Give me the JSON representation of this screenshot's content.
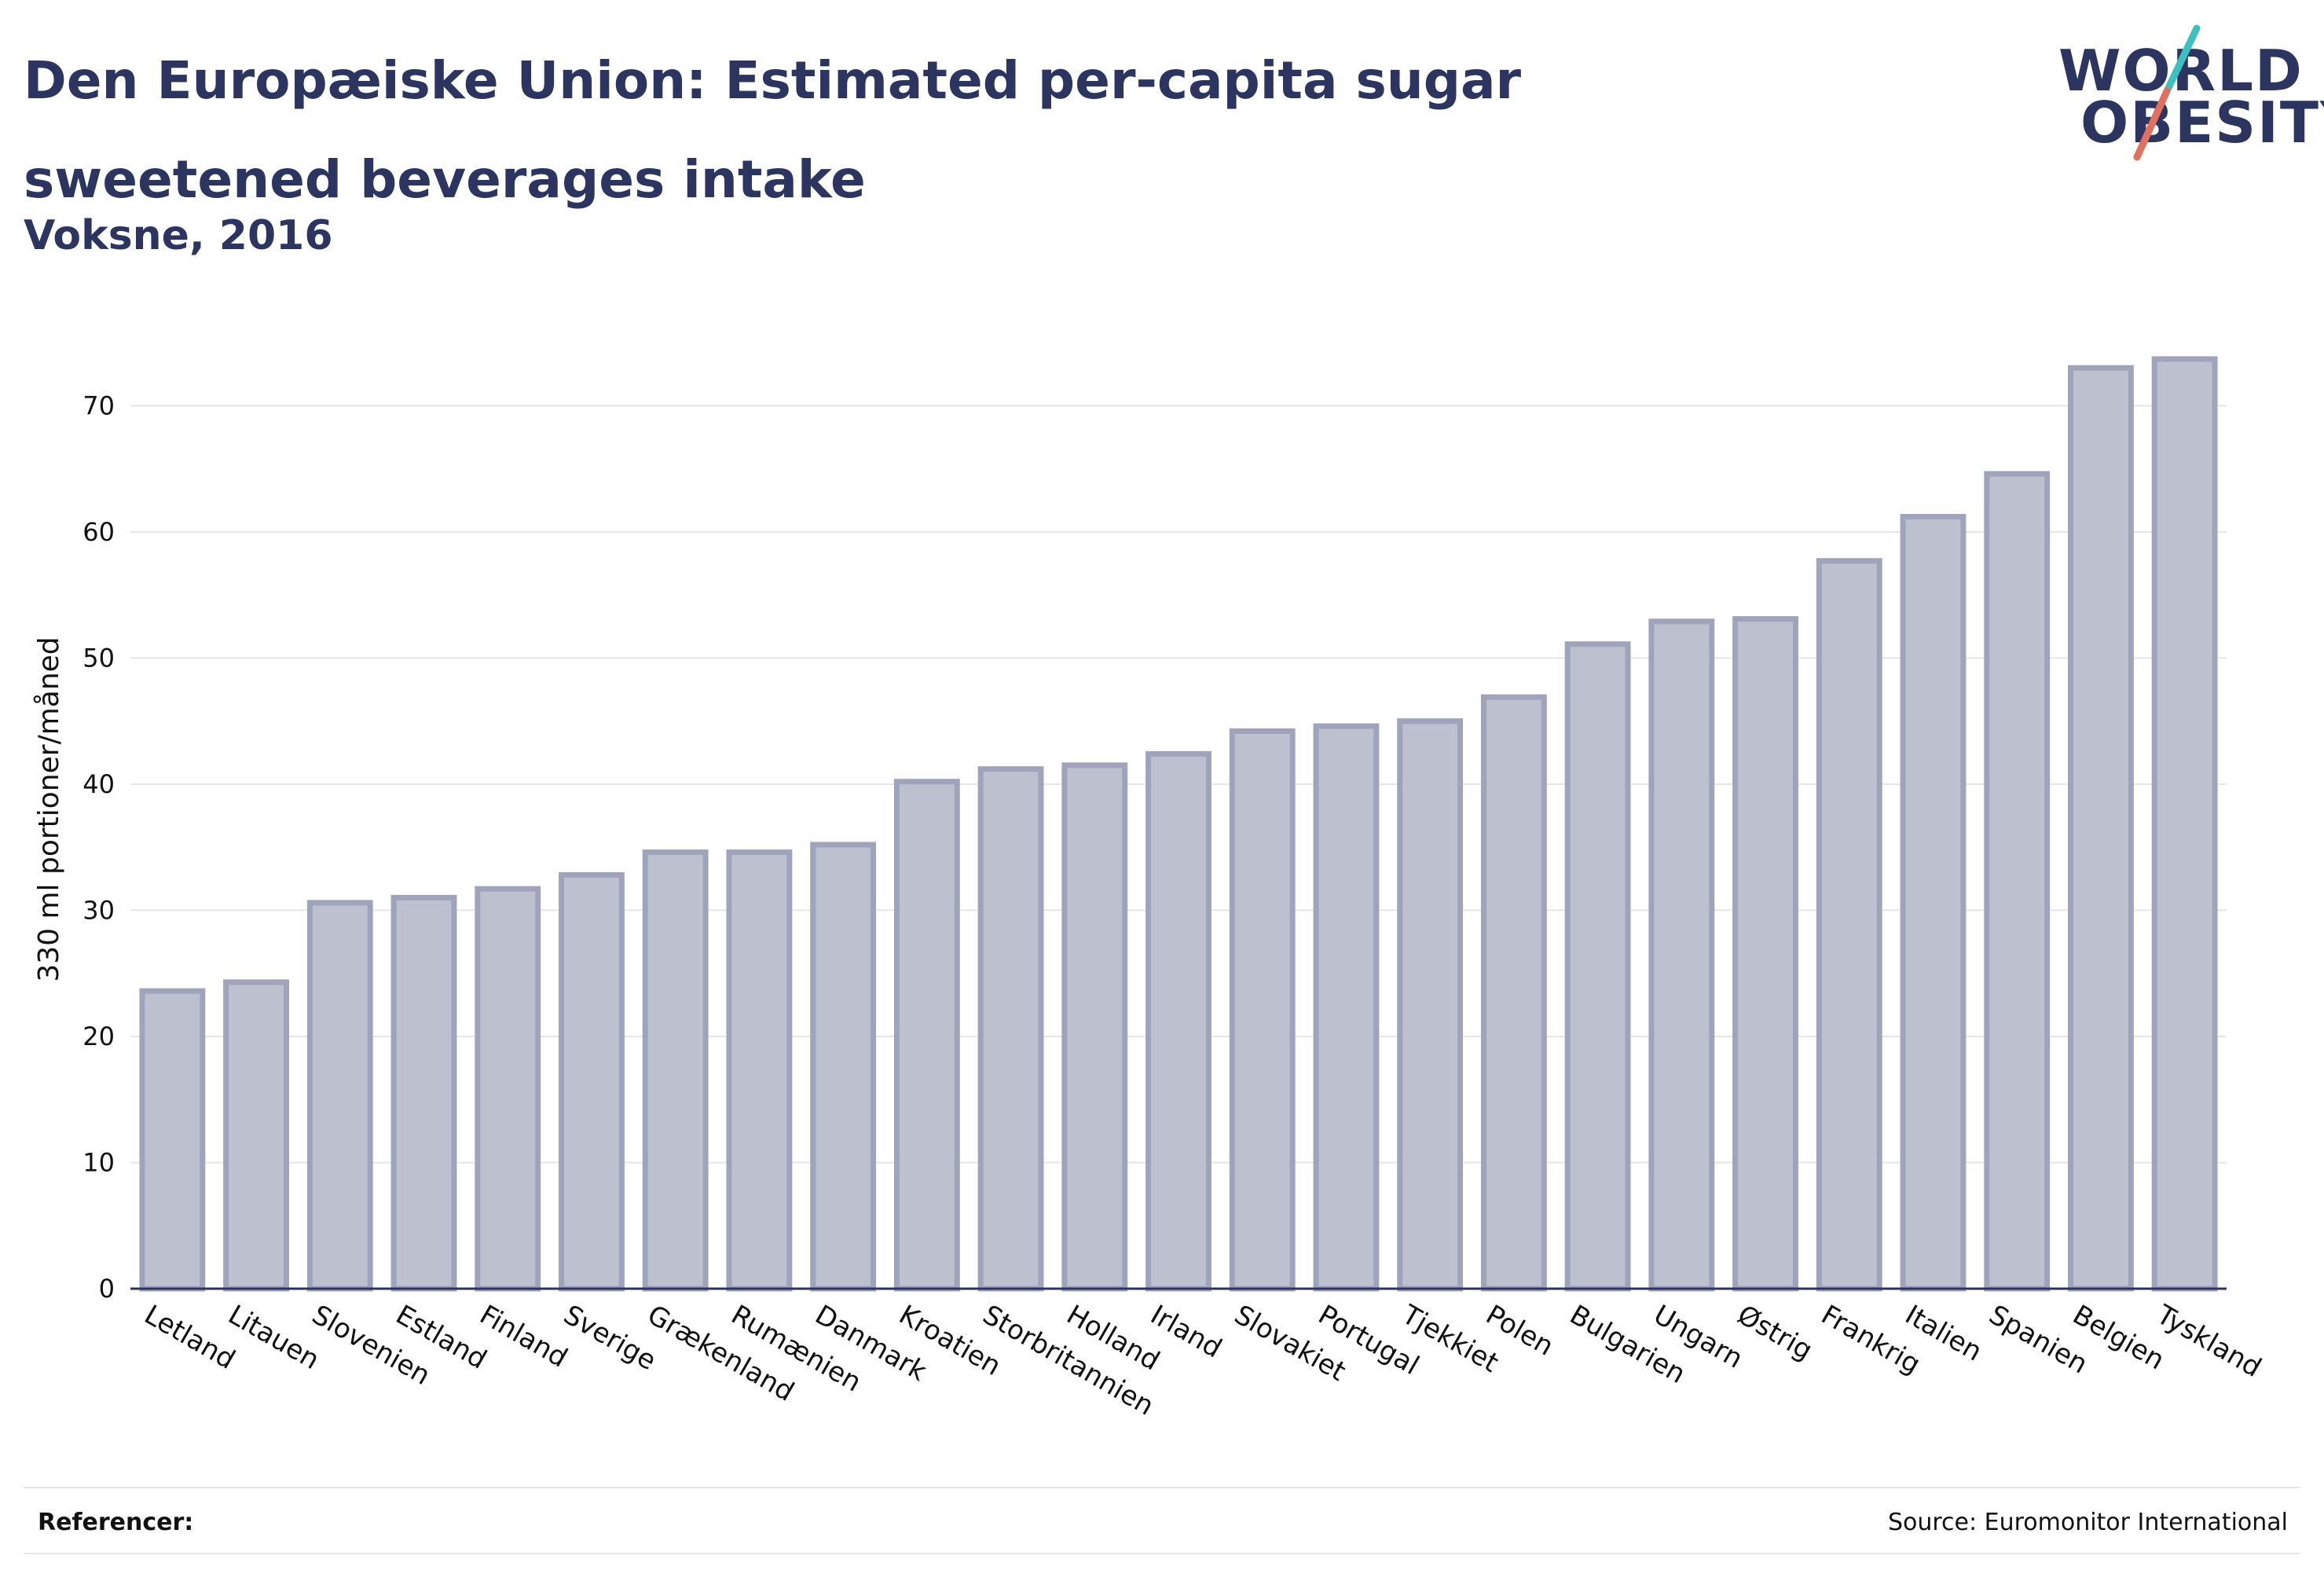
{
  "title": "Den Europæiske Union: Estimated per-capita sugar sweetened beverages intake",
  "subtitle": "Voksne, 2016",
  "logo": {
    "line1": "WORLD",
    "line2": "OBESITY",
    "accent_teal": "#3ebfc0",
    "accent_red": "#e07060"
  },
  "footer": {
    "references_label": "Referencer:",
    "source": "Source: Euromonitor International"
  },
  "colors": {
    "bar_fill": "#bcc0cf",
    "bar_stroke": "#9fa4bb",
    "axis": "#2b3560",
    "grid": "#e6e6e6",
    "title": "#2b3560"
  },
  "chart_data": {
    "type": "bar",
    "ylabel": "330 ml portioner/måned",
    "ylim": [
      0,
      76
    ],
    "yticks": [
      0,
      10,
      20,
      30,
      40,
      50,
      60,
      70
    ],
    "grid": true,
    "categories": [
      "Letland",
      "Litauen",
      "Slovenien",
      "Estland",
      "Finland",
      "Sverige",
      "Grækenland",
      "Rumænien",
      "Danmark",
      "Kroatien",
      "Storbritannien",
      "Holland",
      "Irland",
      "Slovakiet",
      "Portugal",
      "Tjekkiet",
      "Polen",
      "Bulgarien",
      "Ungarn",
      "Østrig",
      "Frankrig",
      "Italien",
      "Spanien",
      "Belgien",
      "Tyskland"
    ],
    "values": [
      23.6,
      24.3,
      30.6,
      31.0,
      31.7,
      32.8,
      34.6,
      34.6,
      35.2,
      40.2,
      41.2,
      41.5,
      42.4,
      44.2,
      44.6,
      45.0,
      46.9,
      51.1,
      52.9,
      53.1,
      57.7,
      61.2,
      64.6,
      73.0,
      73.7
    ]
  }
}
